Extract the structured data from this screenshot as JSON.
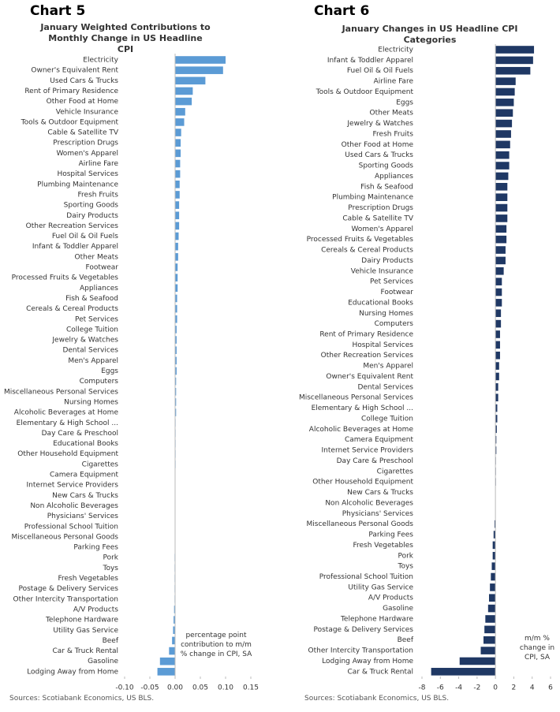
{
  "chart_data": [
    {
      "type": "bar",
      "horizontal": true,
      "label": "Chart 5",
      "title": "January Weighted Contributions to Monthly Change in US Headline CPI",
      "annotation": "percentage point contribution to m/m % change in CPI, SA",
      "source": "Sources: Scotiabank Economics, US BLS.",
      "color": "#5b9bd5",
      "categories": [
        "Electricity",
        "Owner's Equivalent Rent",
        "Used Cars & Trucks",
        "Rent of Primary Residence",
        "Other Food at Home",
        "Vehicle Insurance",
        "Tools & Outdoor Equipment",
        "Cable & Satellite TV",
        "Prescription Drugs",
        "Women's Apparel",
        "Airline Fare",
        "Hospital Services",
        "Plumbing Maintenance",
        "Fresh Fruits",
        "Sporting Goods",
        "Dairy Products",
        "Other Recreation Services",
        "Fuel Oil & Oil Fuels",
        "Infant & Toddler Apparel",
        "Other Meats",
        "Footwear",
        "Processed Fruits & Vegetables",
        "Appliances",
        "Fish & Seafood",
        "Cereals & Cereal Products",
        "Pet Services",
        "College Tuition",
        "Jewelry & Watches",
        "Dental Services",
        "Men's Apparel",
        "Eggs",
        "Computers",
        "Miscellaneous Personal Services",
        "Nursing Homes",
        "Alcoholic Beverages at Home",
        "Elementary & High School ...",
        "Day Care & Preschool",
        "Educational Books",
        "Other Household Equipment",
        "Cigarettes",
        "Camera Equipment",
        "Internet Service Providers",
        "New Cars & Trucks",
        "Non Alcoholic Beverages",
        "Physicians' Services",
        "Professional School Tuition",
        "Miscellaneous Personal Goods",
        "Parking Fees",
        "Pork",
        "Toys",
        "Fresh Vegetables",
        "Postage & Delivery Services",
        "Other Intercity Transportation",
        "A/V Products",
        "Telephone Hardware",
        "Utility Gas Service",
        "Beef",
        "Car & Truck Rental",
        "Gasoline",
        "Lodging Away from Home"
      ],
      "values": [
        0.1,
        0.095,
        0.06,
        0.035,
        0.033,
        0.02,
        0.018,
        0.012,
        0.011,
        0.011,
        0.01,
        0.01,
        0.009,
        0.009,
        0.008,
        0.008,
        0.008,
        0.007,
        0.006,
        0.006,
        0.005,
        0.005,
        0.005,
        0.004,
        0.004,
        0.004,
        0.003,
        0.003,
        0.003,
        0.003,
        0.003,
        0.002,
        0.002,
        0.002,
        0.002,
        0.001,
        0.001,
        0.001,
        0.001,
        0.001,
        0.0005,
        0.0005,
        0,
        0,
        0,
        0,
        0,
        0,
        -0.001,
        -0.001,
        -0.001,
        -0.001,
        -0.001,
        -0.002,
        -0.003,
        -0.004,
        -0.006,
        -0.012,
        -0.03,
        -0.035
      ],
      "xlim": [
        -0.1,
        0.15
      ],
      "xticks": [
        {
          "value": -0.1,
          "label": "-0.10"
        },
        -0.05,
        {
          "value": 0,
          "label": "0.00"
        },
        0.05,
        {
          "value": 0.1,
          "label": "0.10"
        },
        0.15
      ]
    },
    {
      "type": "bar",
      "horizontal": true,
      "label": "Chart 6",
      "title": "January Changes in US Headline CPI Categories",
      "annotation": "m/m % change in CPI, SA",
      "source": "Sources: Scotiabank Economics, US BLS.",
      "color": "#1f3864",
      "categories": [
        "Electricity",
        "Infant & Toddler Apparel",
        "Fuel Oil & Oil Fuels",
        "Airline Fare",
        "Tools & Outdoor Equipment",
        "Eggs",
        "Other Meats",
        "Jewelry & Watches",
        "Fresh Fruits",
        "Other Food at Home",
        "Used Cars & Trucks",
        "Sporting Goods",
        "Appliances",
        "Fish & Seafood",
        "Plumbing Maintenance",
        "Prescription Drugs",
        "Cable & Satellite TV",
        "Women's Apparel",
        "Processed Fruits & Vegetables",
        "Cereals & Cereal Products",
        "Dairy Products",
        "Vehicle Insurance",
        "Pet Services",
        "Footwear",
        "Educational Books",
        "Nursing Homes",
        "Computers",
        "Rent of Primary Residence",
        "Hospital Services",
        "Other Recreation Services",
        "Men's Apparel",
        "Owner's Equivalent Rent",
        "Dental Services",
        "Miscellaneous Personal Services",
        "Elementary & High School ...",
        "College Tuition",
        "Alcoholic Beverages at Home",
        "Camera Equipment",
        "Internet Service Providers",
        "Day Care & Preschool",
        "Cigarettes",
        "Other Household Equipment",
        "New Cars & Trucks",
        "Non Alcoholic Beverages",
        "Physicians' Services",
        "Miscellaneous Personal Goods",
        "Parking Fees",
        "Fresh Vegetables",
        "Pork",
        "Toys",
        "Professional School Tuition",
        "Utility Gas Service",
        "A/V Products",
        "Gasoline",
        "Telephone Hardware",
        "Postage & Delivery Services",
        "Beef",
        "Other Intercity Transportation",
        "Lodging Away from Home",
        "Car & Truck Rental"
      ],
      "values": [
        4.2,
        4.1,
        3.8,
        2.2,
        2.1,
        2.0,
        1.9,
        1.8,
        1.7,
        1.6,
        1.5,
        1.5,
        1.4,
        1.3,
        1.3,
        1.3,
        1.3,
        1.2,
        1.2,
        1.1,
        1.1,
        0.9,
        0.7,
        0.7,
        0.7,
        0.6,
        0.6,
        0.5,
        0.5,
        0.5,
        0.4,
        0.4,
        0.3,
        0.3,
        0.2,
        0.2,
        0.15,
        0.1,
        0.1,
        0.05,
        0.05,
        0.05,
        0,
        0,
        0,
        -0.1,
        -0.2,
        -0.3,
        -0.3,
        -0.4,
        -0.5,
        -0.6,
        -0.7,
        -0.8,
        -1.1,
        -1.2,
        -1.3,
        -1.6,
        -3.9,
        -7.0
      ],
      "xlim": [
        -8,
        6
      ],
      "xticks": [
        -8,
        -6,
        -4,
        -2,
        0,
        2,
        4,
        6
      ]
    }
  ]
}
